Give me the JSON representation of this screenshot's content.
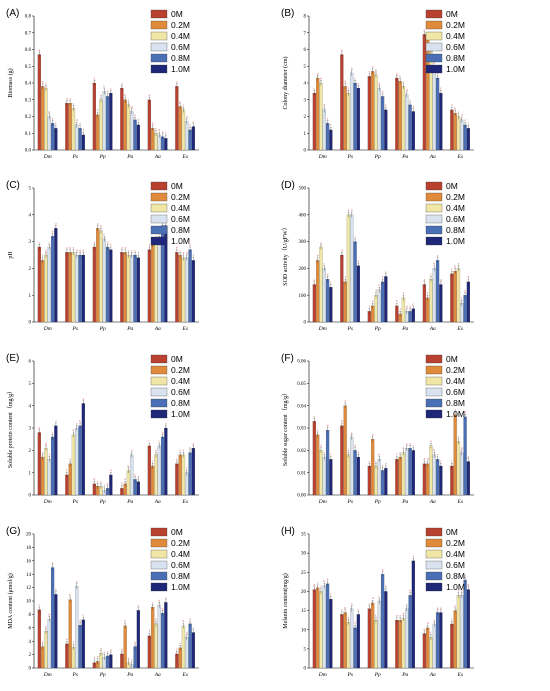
{
  "figure": {
    "legend_labels": [
      "0M",
      "0.2M",
      "0.4M",
      "0.6M",
      "0.8M",
      "1.0M"
    ],
    "legend_colors": [
      "#b84130",
      "#e08a3c",
      "#f0e6a6",
      "#d8e3ef",
      "#4a6fb5",
      "#1f2778"
    ],
    "categories": [
      "Dm",
      "Ps",
      "Pp",
      "Pa",
      "Aa",
      "Es"
    ]
  },
  "chart_data": [
    {
      "panel": "(A)",
      "type": "bar",
      "ylabel": "Biomass (g)",
      "ylim": [
        0,
        0.8
      ],
      "yticks": [
        "0.0",
        "0.1",
        "0.2",
        "0.3",
        "0.4",
        "0.5",
        "0.6",
        "0.7",
        "0.8"
      ],
      "categories": [
        "Dm",
        "Ps",
        "Pp",
        "Pa",
        "Aa",
        "Es"
      ],
      "legend": "top-right",
      "series": [
        {
          "name": "0M",
          "values": [
            0.57,
            0.28,
            0.4,
            0.37,
            0.3,
            0.38
          ]
        },
        {
          "name": "0.2M",
          "values": [
            0.38,
            0.28,
            0.21,
            0.3,
            0.13,
            0.26
          ]
        },
        {
          "name": "0.4M",
          "values": [
            0.37,
            0.25,
            0.3,
            0.27,
            0.1,
            0.24
          ]
        },
        {
          "name": "0.6M",
          "values": [
            0.2,
            0.15,
            0.35,
            0.23,
            0.09,
            0.17
          ]
        },
        {
          "name": "0.8M",
          "values": [
            0.16,
            0.13,
            0.32,
            0.18,
            0.08,
            0.12
          ]
        },
        {
          "name": "1.0M",
          "values": [
            0.13,
            0.09,
            0.34,
            0.15,
            0.07,
            0.14
          ]
        }
      ]
    },
    {
      "panel": "(B)",
      "type": "bar",
      "ylabel": "Colony diameter (cm)",
      "ylim": [
        0,
        8
      ],
      "yticks": [
        "0",
        "1",
        "2",
        "3",
        "4",
        "5",
        "6",
        "7",
        "8"
      ],
      "categories": [
        "Dm",
        "Ps",
        "Pp",
        "Pa",
        "Aa",
        "Es"
      ],
      "legend": "top-right",
      "series": [
        {
          "name": "0M",
          "values": [
            3.4,
            5.7,
            4.4,
            4.3,
            6.9,
            2.4
          ]
        },
        {
          "name": "0.2M",
          "values": [
            4.3,
            3.8,
            4.7,
            4.1,
            6.7,
            2.2
          ]
        },
        {
          "name": "0.4M",
          "values": [
            4.0,
            3.4,
            4.5,
            3.8,
            5.9,
            2.0
          ]
        },
        {
          "name": "0.6M",
          "values": [
            2.4,
            4.6,
            3.7,
            3.3,
            4.9,
            1.8
          ]
        },
        {
          "name": "0.8M",
          "values": [
            1.6,
            4.0,
            3.2,
            2.7,
            4.3,
            1.5
          ]
        },
        {
          "name": "1.0M",
          "values": [
            1.2,
            3.7,
            2.4,
            2.3,
            3.4,
            1.3
          ]
        }
      ]
    },
    {
      "panel": "(C)",
      "type": "bar",
      "ylabel": "pH",
      "ylim": [
        0,
        5
      ],
      "yticks": [
        "0",
        "1",
        "2",
        "3",
        "4",
        "5"
      ],
      "categories": [
        "Dm",
        "Ps",
        "Pp",
        "Pa",
        "Aa",
        "Es"
      ],
      "legend": "top-right",
      "series": [
        {
          "name": "0M",
          "values": [
            2.8,
            2.6,
            2.8,
            2.6,
            2.7,
            2.6
          ]
        },
        {
          "name": "0.2M",
          "values": [
            2.3,
            2.6,
            3.5,
            2.6,
            2.9,
            2.5
          ]
        },
        {
          "name": "0.4M",
          "values": [
            2.5,
            2.6,
            3.4,
            2.5,
            3.0,
            2.4
          ]
        },
        {
          "name": "0.6M",
          "values": [
            2.8,
            2.5,
            3.1,
            2.5,
            3.1,
            2.4
          ]
        },
        {
          "name": "0.8M",
          "values": [
            3.2,
            2.5,
            2.8,
            2.5,
            3.6,
            2.7
          ]
        },
        {
          "name": "1.0M",
          "values": [
            3.5,
            2.5,
            2.7,
            2.4,
            3.6,
            2.3
          ]
        }
      ]
    },
    {
      "panel": "(D)",
      "type": "bar",
      "ylabel": "SOD activity（U/gFW）",
      "ylim": [
        0,
        500
      ],
      "yticks": [
        "0",
        "100",
        "200",
        "300",
        "400",
        "500"
      ],
      "categories": [
        "Dm",
        "Ps",
        "Pp",
        "Pa",
        "Aa",
        "Es"
      ],
      "legend": "top-right",
      "series": [
        {
          "name": "0M",
          "values": [
            140,
            250,
            40,
            60,
            140,
            180
          ]
        },
        {
          "name": "0.2M",
          "values": [
            230,
            150,
            60,
            30,
            90,
            190
          ]
        },
        {
          "name": "0.4M",
          "values": [
            280,
            400,
            100,
            90,
            160,
            200
          ]
        },
        {
          "name": "0.6M",
          "values": [
            200,
            400,
            120,
            40,
            200,
            70
          ]
        },
        {
          "name": "0.8M",
          "values": [
            160,
            300,
            150,
            40,
            230,
            100
          ]
        },
        {
          "name": "1.0M",
          "values": [
            130,
            210,
            170,
            50,
            140,
            150
          ]
        }
      ]
    },
    {
      "panel": "(E)",
      "type": "bar",
      "ylabel": "Soluble protein content（mg/g）",
      "ylim": [
        0,
        6
      ],
      "yticks": [
        "0",
        "1",
        "2",
        "3",
        "4",
        "5",
        "6"
      ],
      "categories": [
        "Dm",
        "Ps",
        "Pp",
        "Pa",
        "Aa",
        "Es"
      ],
      "legend": "top-right",
      "series": [
        {
          "name": "0M",
          "values": [
            2.8,
            0.9,
            0.5,
            0.3,
            2.2,
            1.4
          ]
        },
        {
          "name": "0.2M",
          "values": [
            1.7,
            1.4,
            0.4,
            0.5,
            1.3,
            1.8
          ]
        },
        {
          "name": "0.4M",
          "values": [
            2.1,
            2.7,
            0.4,
            1.1,
            1.8,
            1.8
          ]
        },
        {
          "name": "0.6M",
          "values": [
            1.6,
            3.0,
            0.2,
            1.8,
            2.2,
            1.0
          ]
        },
        {
          "name": "0.8M",
          "values": [
            2.6,
            3.1,
            0.3,
            0.7,
            2.6,
            1.9
          ]
        },
        {
          "name": "1.0M",
          "values": [
            3.1,
            4.1,
            0.9,
            0.6,
            3.0,
            2.1
          ]
        }
      ]
    },
    {
      "panel": "(F)",
      "type": "bar",
      "ylabel": "Soluble sugar content（mg/g）",
      "ylim": [
        0,
        0.06
      ],
      "yticks": [
        "0.00",
        "0.01",
        "0.02",
        "0.03",
        "0.04",
        "0.05",
        "0.06"
      ],
      "categories": [
        "Dm",
        "Ps",
        "Pp",
        "Pa",
        "Aa",
        "Es"
      ],
      "legend": "top-right",
      "series": [
        {
          "name": "0M",
          "values": [
            0.033,
            0.031,
            0.013,
            0.016,
            0.014,
            0.013
          ]
        },
        {
          "name": "0.2M",
          "values": [
            0.027,
            0.04,
            0.025,
            0.017,
            0.014,
            0.036
          ]
        },
        {
          "name": "0.4M",
          "values": [
            0.02,
            0.018,
            0.013,
            0.019,
            0.022,
            0.024
          ]
        },
        {
          "name": "0.6M",
          "values": [
            0.017,
            0.026,
            0.016,
            0.021,
            0.018,
            0.019
          ]
        },
        {
          "name": "0.8M",
          "values": [
            0.029,
            0.02,
            0.011,
            0.021,
            0.016,
            0.035
          ]
        },
        {
          "name": "1.0M",
          "values": [
            0.016,
            0.017,
            0.012,
            0.02,
            0.013,
            0.015
          ]
        }
      ]
    },
    {
      "panel": "(G)",
      "type": "bar",
      "ylabel": "MDA content (μmol/g)",
      "ylim": [
        0,
        20
      ],
      "yticks": [
        "0",
        "2",
        "4",
        "6",
        "8",
        "10",
        "12",
        "14",
        "16",
        "18",
        "20"
      ],
      "categories": [
        "Dm",
        "Ps",
        "Pp",
        "Pa",
        "Aa",
        "Es"
      ],
      "legend": "top-right",
      "series": [
        {
          "name": "0M",
          "values": [
            8.7,
            3.6,
            0.8,
            2.1,
            4.8,
            2.1
          ]
        },
        {
          "name": "0.2M",
          "values": [
            3.2,
            10.2,
            1.0,
            6.3,
            9.1,
            3.0
          ]
        },
        {
          "name": "0.4M",
          "values": [
            5.5,
            3.1,
            2.2,
            0.8,
            6.6,
            6.3
          ]
        },
        {
          "name": "0.6M",
          "values": [
            7.3,
            12.2,
            1.6,
            0.5,
            9.4,
            4.6
          ]
        },
        {
          "name": "0.8M",
          "values": [
            15.0,
            6.4,
            1.8,
            3.2,
            8.2,
            6.6
          ]
        },
        {
          "name": "1.0M",
          "values": [
            11.0,
            7.2,
            2.0,
            8.6,
            9.8,
            5.3
          ]
        }
      ]
    },
    {
      "panel": "(H)",
      "type": "bar",
      "ylabel": "Melanin content(mg/g)",
      "ylim": [
        0,
        35
      ],
      "yticks": [
        "0",
        "5",
        "10",
        "15",
        "20",
        "25",
        "30",
        "35"
      ],
      "categories": [
        "Dm",
        "Ps",
        "Pp",
        "Pa",
        "Aa",
        "Es"
      ],
      "legend": "top-right",
      "series": [
        {
          "name": "0M",
          "values": [
            20.5,
            14.0,
            15.5,
            12.5,
            9.0,
            11.5
          ]
        },
        {
          "name": "0.2M",
          "values": [
            21.0,
            14.5,
            17.0,
            12.5,
            10.5,
            15.0
          ]
        },
        {
          "name": "0.4M",
          "values": [
            20.0,
            12.0,
            12.5,
            13.0,
            8.0,
            19.0
          ]
        },
        {
          "name": "0.6M",
          "values": [
            21.5,
            15.5,
            17.5,
            15.5,
            11.5,
            19.0
          ]
        },
        {
          "name": "0.8M",
          "values": [
            22.0,
            10.5,
            24.5,
            19.0,
            14.5,
            23.0
          ]
        },
        {
          "name": "1.0M",
          "values": [
            18.0,
            14.0,
            20.0,
            28.0,
            14.5,
            20.5
          ]
        }
      ]
    }
  ]
}
